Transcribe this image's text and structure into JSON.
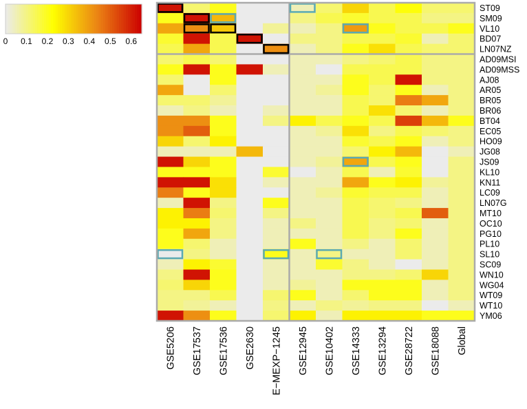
{
  "chart_data": {
    "type": "heatmap",
    "title": "",
    "columns": [
      "GSE5206",
      "GSE17537",
      "GSE17536",
      "GSE2630",
      "E−MEXP−1245",
      "GSE12945",
      "GSE10402",
      "GSE14333",
      "GSE13294",
      "GSE28722",
      "GSE18088",
      "Global"
    ],
    "rows": [
      "ST09",
      "SM09",
      "VL10",
      "BD07",
      "LN07NZ",
      "AD09MSI",
      "AD09MSS",
      "AJ08",
      "AR05",
      "BR05",
      "BR06",
      "BT04",
      "EC05",
      "HO09",
      "JG08",
      "JS09",
      "KL10",
      "KN11",
      "LC09",
      "LN07G",
      "MT10",
      "OC10",
      "PG10",
      "PL10",
      "SL10",
      "SC09",
      "WN10",
      "WG04",
      "WT09",
      "WT10",
      "YM06"
    ],
    "values": [
      [
        0.62,
        0.12,
        0.2,
        0.0,
        0.0,
        0.05,
        0.12,
        0.3,
        0.15,
        0.22,
        0.12,
        0.12
      ],
      [
        0.2,
        0.62,
        0.35,
        0.0,
        0.0,
        0.1,
        0.15,
        0.18,
        0.15,
        0.15,
        0.1,
        0.1
      ],
      [
        0.38,
        0.42,
        0.32,
        0.0,
        0.08,
        0.05,
        0.1,
        0.4,
        0.2,
        0.15,
        0.15,
        0.2
      ],
      [
        0.18,
        0.62,
        0.15,
        0.62,
        0.0,
        0.1,
        0.1,
        0.15,
        0.15,
        0.18,
        0.05,
        0.12
      ],
      [
        0.15,
        0.38,
        0.15,
        0.0,
        0.42,
        0.05,
        0.1,
        0.2,
        0.28,
        0.15,
        0.12,
        0.12
      ],
      [
        0.12,
        0.15,
        0.12,
        0.0,
        0.0,
        0.05,
        0.05,
        0.1,
        0.12,
        0.15,
        0.1,
        0.1
      ],
      [
        0.2,
        0.62,
        0.2,
        0.62,
        0.05,
        0.05,
        0.0,
        0.15,
        0.15,
        0.15,
        0.1,
        0.1
      ],
      [
        0.12,
        0.0,
        0.2,
        0.0,
        0.0,
        0.05,
        0.05,
        0.2,
        0.15,
        0.62,
        0.1,
        0.1
      ],
      [
        0.38,
        0.0,
        0.12,
        0.0,
        0.0,
        0.05,
        0.08,
        0.2,
        0.12,
        0.2,
        0.05,
        0.1
      ],
      [
        0.12,
        0.12,
        0.08,
        0.0,
        0.0,
        0.05,
        0.05,
        0.15,
        0.12,
        0.45,
        0.38,
        0.1
      ],
      [
        0.05,
        0.1,
        0.05,
        0.0,
        0.05,
        0.05,
        0.05,
        0.15,
        0.28,
        0.12,
        0.05,
        0.1
      ],
      [
        0.42,
        0.42,
        0.2,
        0.0,
        0.1,
        0.25,
        0.15,
        0.2,
        0.15,
        0.55,
        0.35,
        0.2
      ],
      [
        0.42,
        0.5,
        0.2,
        0.0,
        0.0,
        0.05,
        0.08,
        0.28,
        0.1,
        0.15,
        0.12,
        0.1
      ],
      [
        0.3,
        0.12,
        0.25,
        0.0,
        0.0,
        0.05,
        0.05,
        0.18,
        0.15,
        0.2,
        0.05,
        0.1
      ],
      [
        0.05,
        0.05,
        0.05,
        0.35,
        0.0,
        0.05,
        0.05,
        0.12,
        0.25,
        0.35,
        0.0,
        0.05
      ],
      [
        0.62,
        0.3,
        0.2,
        0.0,
        0.0,
        0.05,
        0.08,
        0.38,
        0.15,
        0.2,
        0.0,
        0.1
      ],
      [
        0.2,
        0.2,
        0.2,
        0.0,
        0.18,
        0.0,
        0.05,
        0.15,
        0.05,
        0.18,
        0.0,
        0.1
      ],
      [
        0.62,
        0.62,
        0.28,
        0.0,
        0.05,
        0.05,
        0.05,
        0.38,
        0.2,
        0.25,
        0.08,
        0.1
      ],
      [
        0.45,
        0.2,
        0.28,
        0.0,
        0.0,
        0.05,
        0.08,
        0.18,
        0.15,
        0.15,
        0.05,
        0.1
      ],
      [
        0.05,
        0.62,
        0.1,
        0.0,
        0.2,
        0.05,
        0.05,
        0.15,
        0.12,
        0.1,
        0.05,
        0.1
      ],
      [
        0.25,
        0.45,
        0.12,
        0.0,
        0.1,
        0.05,
        0.05,
        0.15,
        0.12,
        0.15,
        0.5,
        0.1
      ],
      [
        0.25,
        0.25,
        0.1,
        0.0,
        0.05,
        0.1,
        0.05,
        0.15,
        0.1,
        0.12,
        0.05,
        0.1
      ],
      [
        0.2,
        0.38,
        0.1,
        0.0,
        0.05,
        0.05,
        0.05,
        0.15,
        0.1,
        0.2,
        0.05,
        0.1
      ],
      [
        0.2,
        0.12,
        0.05,
        0.0,
        0.05,
        0.2,
        0.05,
        0.1,
        0.05,
        0.12,
        0.05,
        0.1
      ],
      [
        0.0,
        0.1,
        0.05,
        0.0,
        0.2,
        0.05,
        0.1,
        0.05,
        0.05,
        0.12,
        0.05,
        0.1
      ],
      [
        0.05,
        0.25,
        0.18,
        0.0,
        0.05,
        0.05,
        0.18,
        0.1,
        0.05,
        0.0,
        0.05,
        0.1
      ],
      [
        0.1,
        0.62,
        0.2,
        0.0,
        0.05,
        0.05,
        0.05,
        0.1,
        0.1,
        0.12,
        0.3,
        0.1
      ],
      [
        0.12,
        0.3,
        0.2,
        0.0,
        0.05,
        0.08,
        0.05,
        0.2,
        0.2,
        0.2,
        0.05,
        0.1
      ],
      [
        0.1,
        0.1,
        0.15,
        0.0,
        0.12,
        0.2,
        0.05,
        0.12,
        0.2,
        0.2,
        0.05,
        0.1
      ],
      [
        0.1,
        0.08,
        0.05,
        0.0,
        0.1,
        0.05,
        0.1,
        0.08,
        0.1,
        0.1,
        0.0,
        0.05
      ],
      [
        0.62,
        0.42,
        0.2,
        0.0,
        0.12,
        0.25,
        0.05,
        0.25,
        0.25,
        0.25,
        0.2,
        0.2
      ]
    ],
    "highlights_black": [
      [
        0,
        0
      ],
      [
        1,
        1
      ],
      [
        2,
        1
      ],
      [
        2,
        2
      ],
      [
        3,
        3
      ],
      [
        4,
        4
      ]
    ],
    "highlights_teal": [
      [
        0,
        5
      ],
      [
        1,
        2
      ],
      [
        2,
        7
      ],
      [
        15,
        7
      ],
      [
        24,
        0
      ],
      [
        24,
        4
      ],
      [
        24,
        6
      ]
    ],
    "group_separator_after_row": "LN07NZ",
    "group_separator_after_column": "E−MEXP−1245",
    "legend": {
      "ticks": [
        0,
        0.1,
        0.2,
        0.3,
        0.4,
        0.5,
        0.6
      ],
      "tick_labels": [
        "0",
        "0.1",
        "0.2",
        "0.3",
        "0.4",
        "0.5",
        "0.6"
      ],
      "range": [
        0,
        0.65
      ],
      "placement": "top-left"
    },
    "colors": {
      "low": "#ebebeb",
      "mid": "#ffff00",
      "high": "#cc0000",
      "border": "#aaaaaa",
      "highlight_black": "#000000",
      "highlight_teal": "#5aa9b2"
    }
  }
}
